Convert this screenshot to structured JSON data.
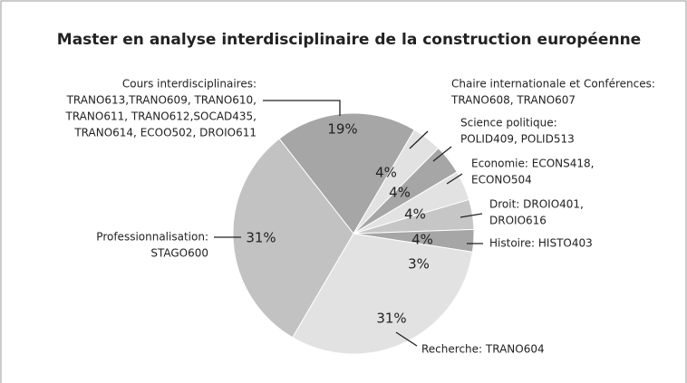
{
  "chart_data": {
    "type": "pie",
    "title": "Master en analyse interdisciplinaire de la construction européenne",
    "labels": [
      [
        "Cours interdisciplinaires:",
        "TRANO613,TRANO609, TRANO610,",
        "TRANO611, TRANO612,SOCAD435,",
        "TRANO614, ECOO502, DROIO611"
      ],
      [
        "Chaire internationale et Conférences:",
        "TRANO608, TRANO607"
      ],
      [
        "Science politique:",
        "POLID409, POLID513"
      ],
      [
        "Economie: ECONS418,",
        "ECONO504"
      ],
      [
        "Droit: DROIO401,",
        "DROIO616"
      ],
      [
        "Histoire: HISTO403"
      ],
      [
        "Recherche: TRANO604"
      ],
      [
        "Professionnalisation:",
        "STAGO600"
      ]
    ],
    "values": [
      19,
      4,
      4,
      4,
      4,
      3,
      31,
      31
    ],
    "value_labels": [
      "19%",
      "4%",
      "4%",
      "4%",
      "4%",
      "3%",
      "31%",
      "31%"
    ],
    "colors": [
      "#a6a6a6",
      "#e2e2e2",
      "#a6a6a6",
      "#e2e2e2",
      "#c6c6c6",
      "#a6a6a6",
      "#e2e2e2",
      "#c2c2c2"
    ]
  }
}
